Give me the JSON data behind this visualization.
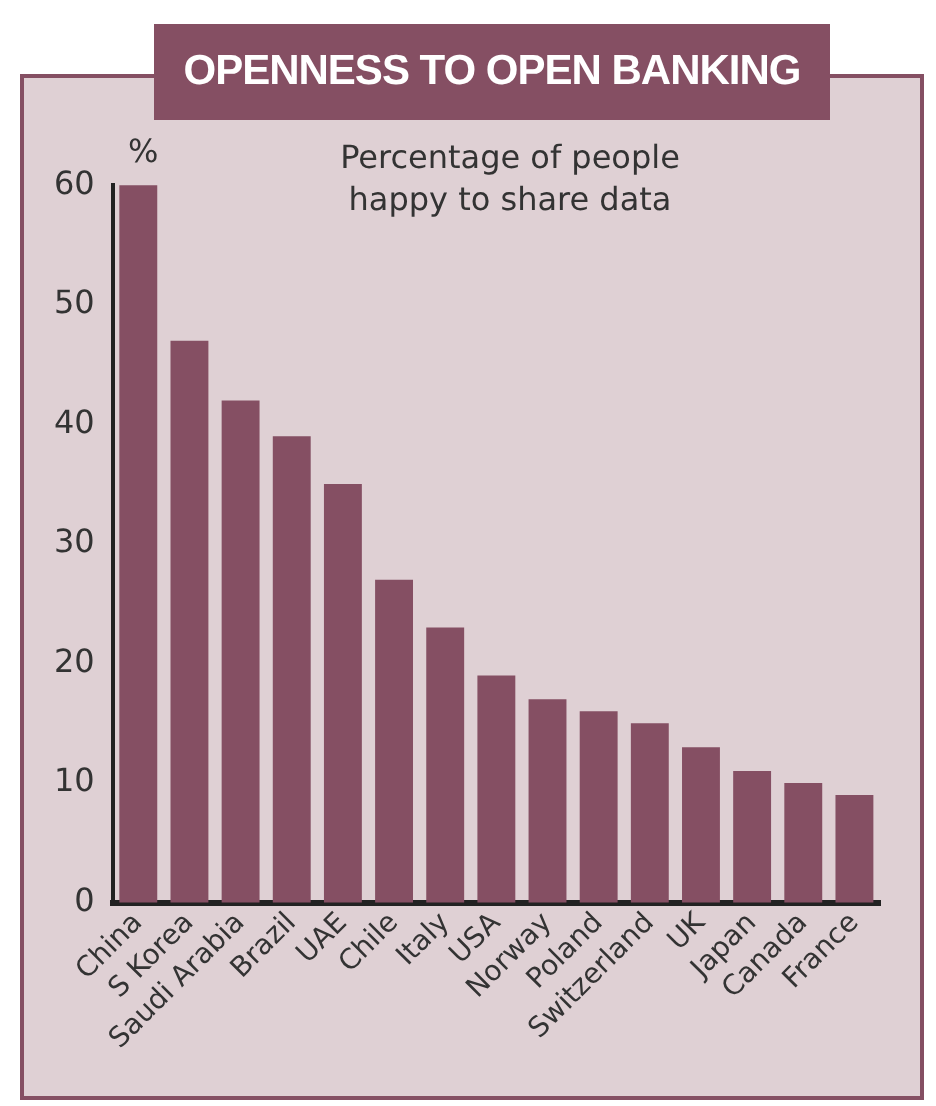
{
  "chart_data": {
    "type": "bar",
    "title": "OPENNESS TO OPEN BANKING",
    "subtitle": "Percentage of people\nhappy to share data",
    "ylabel": "%",
    "categories": [
      "China",
      "S Korea",
      "Saudi Arabia",
      "Brazil",
      "UAE",
      "Chile",
      "Italy",
      "USA",
      "Norway",
      "Poland",
      "Switzerland",
      "UK",
      "Japan",
      "Canada",
      "France"
    ],
    "values": [
      60,
      47,
      42,
      39,
      35,
      27,
      23,
      19,
      17,
      16,
      15,
      13,
      11,
      10,
      9
    ],
    "color": "#854f63",
    "ylim": [
      0,
      60
    ],
    "yticks": [
      0,
      10,
      20,
      30,
      40,
      50,
      60
    ],
    "grid": false,
    "legend": false
  }
}
